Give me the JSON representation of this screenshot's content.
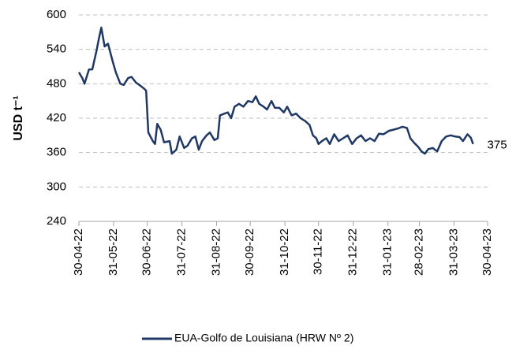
{
  "chart_data": {
    "type": "line",
    "y_label": "USD t⁻¹",
    "annotation": "375",
    "xlim": [
      "2022-04-30",
      "2023-04-30"
    ],
    "xticks": [
      {
        "value": "2022-04-30",
        "label": "30-04-22"
      },
      {
        "value": "2022-05-31",
        "label": "31-05-22"
      },
      {
        "value": "2022-06-30",
        "label": "30-06-22"
      },
      {
        "value": "2022-07-31",
        "label": "31-07-22"
      },
      {
        "value": "2022-08-31",
        "label": "31-08-22"
      },
      {
        "value": "2022-09-30",
        "label": "30-09-22"
      },
      {
        "value": "2022-10-31",
        "label": "31-10-22"
      },
      {
        "value": "2022-11-30",
        "label": "30-11-22"
      },
      {
        "value": "2022-12-31",
        "label": "31-12-22"
      },
      {
        "value": "2023-01-31",
        "label": "31-01-23"
      },
      {
        "value": "2023-02-28",
        "label": "28-02-23"
      },
      {
        "value": "2023-03-31",
        "label": "31-03-23"
      },
      {
        "value": "2023-04-30",
        "label": "30-04-23"
      }
    ],
    "ylim": [
      240,
      600
    ],
    "yticks": [
      240,
      300,
      360,
      420,
      480,
      540,
      600
    ],
    "grid": true,
    "x": [
      "2022-04-30",
      "2022-05-03",
      "2022-05-05",
      "2022-05-09",
      "2022-05-12",
      "2022-05-16",
      "2022-05-18",
      "2022-05-20",
      "2022-05-23",
      "2022-05-26",
      "2022-05-30",
      "2022-06-02",
      "2022-06-06",
      "2022-06-09",
      "2022-06-13",
      "2022-06-16",
      "2022-06-20",
      "2022-06-23",
      "2022-06-27",
      "2022-06-29",
      "2022-07-01",
      "2022-07-05",
      "2022-07-07",
      "2022-07-09",
      "2022-07-12",
      "2022-07-15",
      "2022-07-20",
      "2022-07-22",
      "2022-07-26",
      "2022-07-29",
      "2022-08-02",
      "2022-08-05",
      "2022-08-09",
      "2022-08-12",
      "2022-08-15",
      "2022-08-18",
      "2022-08-22",
      "2022-08-25",
      "2022-08-29",
      "2022-09-01",
      "2022-09-03",
      "2022-09-07",
      "2022-09-10",
      "2022-09-13",
      "2022-09-16",
      "2022-09-20",
      "2022-09-24",
      "2022-09-28",
      "2022-10-02",
      "2022-10-05",
      "2022-10-08",
      "2022-10-12",
      "2022-10-15",
      "2022-10-19",
      "2022-10-22",
      "2022-10-26",
      "2022-10-30",
      "2022-11-02",
      "2022-11-06",
      "2022-11-10",
      "2022-11-14",
      "2022-11-18",
      "2022-11-22",
      "2022-11-25",
      "2022-11-28",
      "2022-11-30",
      "2022-12-03",
      "2022-12-07",
      "2022-12-10",
      "2022-12-14",
      "2022-12-18",
      "2022-12-22",
      "2022-12-26",
      "2022-12-30",
      "2023-01-03",
      "2023-01-07",
      "2023-01-11",
      "2023-01-15",
      "2023-01-19",
      "2023-01-23",
      "2023-01-27",
      "2023-02-01",
      "2023-02-05",
      "2023-02-09",
      "2023-02-13",
      "2023-02-17",
      "2023-02-20",
      "2023-02-23",
      "2023-02-27",
      "2023-03-02",
      "2023-03-05",
      "2023-03-08",
      "2023-03-12",
      "2023-03-16",
      "2023-03-20",
      "2023-03-24",
      "2023-03-28",
      "2023-04-01",
      "2023-04-05",
      "2023-04-08",
      "2023-04-12",
      "2023-04-15",
      "2023-04-17"
    ],
    "series": [
      {
        "name": "EUA-Golfo de Louisiana (HRW Nº 2)",
        "color": "#1f3864",
        "values": [
          500,
          490,
          480,
          505,
          505,
          540,
          560,
          578,
          545,
          550,
          520,
          500,
          480,
          478,
          490,
          492,
          482,
          478,
          472,
          468,
          395,
          380,
          375,
          410,
          400,
          378,
          380,
          358,
          365,
          388,
          368,
          372,
          385,
          388,
          365,
          380,
          390,
          395,
          382,
          385,
          425,
          428,
          430,
          420,
          440,
          445,
          440,
          450,
          448,
          458,
          445,
          440,
          435,
          450,
          438,
          438,
          430,
          440,
          425,
          428,
          420,
          415,
          408,
          390,
          385,
          375,
          380,
          385,
          375,
          392,
          380,
          385,
          390,
          375,
          385,
          390,
          380,
          385,
          380,
          393,
          392,
          398,
          400,
          402,
          405,
          403,
          385,
          378,
          370,
          362,
          358,
          366,
          368,
          362,
          380,
          388,
          390,
          388,
          387,
          380,
          392,
          386,
          375
        ]
      }
    ]
  }
}
